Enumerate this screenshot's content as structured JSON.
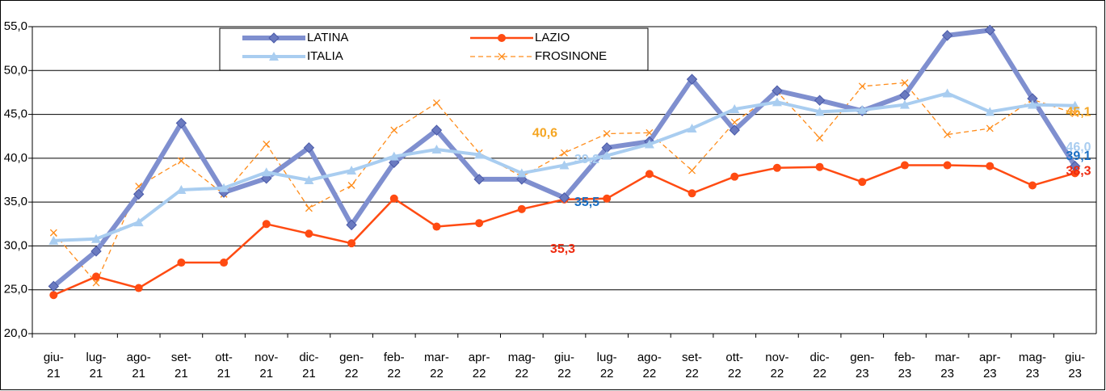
{
  "chart_data": {
    "type": "line",
    "categories": [
      "giu-\n21",
      "lug-\n21",
      "ago-\n21",
      "set-\n21",
      "ott-\n21",
      "nov-\n21",
      "dic-\n21",
      "gen-\n22",
      "feb-\n22",
      "mar-\n22",
      "apr-\n22",
      "mag-\n22",
      "giu-\n22",
      "lug-\n22",
      "ago-\n22",
      "set-\n22",
      "ott-\n22",
      "nov-\n22",
      "dic-\n22",
      "gen-\n23",
      "feb-\n23",
      "mar-\n23",
      "apr-\n23",
      "mag-\n23",
      "giu-\n23"
    ],
    "series": [
      {
        "name": "LATINA",
        "color": "#7f8fcf",
        "label_color": "#1a6fc4",
        "values": [
          25.4,
          29.4,
          35.9,
          44.0,
          36.1,
          37.7,
          41.2,
          32.4,
          39.5,
          43.2,
          37.6,
          37.6,
          35.5,
          41.2,
          41.9,
          49.0,
          43.2,
          47.7,
          46.6,
          45.4,
          47.2,
          54.0,
          54.6,
          46.8,
          39.1
        ],
        "value_labels": [
          null,
          null,
          null,
          null,
          null,
          null,
          null,
          null,
          null,
          null,
          null,
          null,
          "35,5",
          null,
          null,
          null,
          null,
          null,
          null,
          null,
          null,
          null,
          null,
          null,
          "39,1"
        ]
      },
      {
        "name": "LAZIO",
        "color": "#ff4b12",
        "label_color": "#ee2b10",
        "values": [
          24.4,
          26.5,
          25.2,
          28.1,
          28.1,
          32.5,
          31.4,
          30.3,
          35.4,
          32.2,
          32.6,
          34.2,
          35.3,
          35.4,
          38.2,
          36.0,
          37.9,
          38.9,
          39.0,
          37.3,
          39.2,
          39.2,
          39.1,
          36.9,
          38.3
        ],
        "value_labels": [
          null,
          null,
          null,
          null,
          null,
          null,
          null,
          null,
          null,
          null,
          null,
          null,
          "35,3",
          null,
          null,
          null,
          null,
          null,
          null,
          null,
          null,
          null,
          null,
          null,
          "38,3"
        ]
      },
      {
        "name": "ITALIA",
        "color": "#a9cdf0",
        "label_color": "#a9cdf0",
        "values": [
          30.6,
          30.8,
          32.7,
          36.4,
          36.6,
          38.4,
          37.5,
          38.6,
          40.2,
          41.0,
          40.4,
          38.3,
          39.2,
          40.3,
          41.6,
          43.4,
          45.6,
          46.4,
          45.3,
          45.5,
          46.1,
          47.4,
          45.3,
          46.1,
          46.0
        ],
        "value_labels": [
          null,
          null,
          null,
          null,
          null,
          null,
          null,
          null,
          null,
          null,
          null,
          null,
          "39,2",
          null,
          null,
          null,
          null,
          null,
          null,
          null,
          null,
          null,
          null,
          null,
          "46,0"
        ]
      },
      {
        "name": "FROSINONE",
        "color": "#ff8c1a",
        "label_color": "#f5a623",
        "values": [
          31.5,
          25.8,
          36.8,
          39.7,
          35.9,
          41.6,
          34.3,
          36.9,
          43.2,
          46.3,
          40.6,
          37.9,
          40.6,
          42.8,
          42.9,
          38.6,
          44.1,
          47.6,
          42.3,
          48.2,
          48.6,
          42.7,
          43.4,
          46.7,
          45.1
        ],
        "value_labels": [
          null,
          null,
          null,
          null,
          null,
          null,
          null,
          null,
          null,
          null,
          null,
          null,
          "40,6",
          null,
          null,
          null,
          null,
          null,
          null,
          null,
          null,
          null,
          null,
          null,
          "45,1"
        ]
      }
    ],
    "ylim": [
      20,
      55
    ],
    "yticks": [
      {
        "value": 20,
        "label": "20,0"
      },
      {
        "value": 25,
        "label": "25,0"
      },
      {
        "value": 30,
        "label": "30,0"
      },
      {
        "value": 35,
        "label": "35,0"
      },
      {
        "value": 40,
        "label": "40,0"
      },
      {
        "value": 45,
        "label": "45,0"
      },
      {
        "value": 50,
        "label": "50,0"
      },
      {
        "value": 55,
        "label": "55,0"
      }
    ],
    "grid": true
  }
}
